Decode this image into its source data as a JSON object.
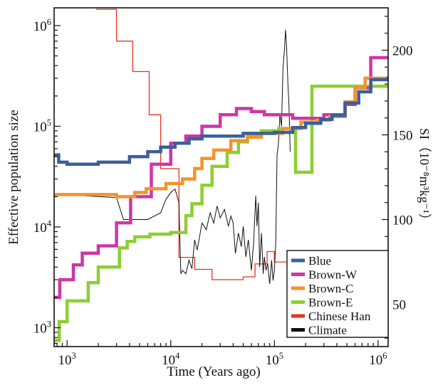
{
  "chart_data": {
    "type": "line",
    "x_scale": "log",
    "y_scale": "log",
    "xlabel": "Time (Years ago)",
    "ylabel": "Effective population size",
    "y2label": "SI（10⁻⁸m³kg⁻¹）",
    "xlim": [
      750,
      1250000
    ],
    "ylim": [
      650,
      1500000
    ],
    "y2lim": [
      25,
      225
    ],
    "x_ticks": [
      {
        "v": 1000,
        "b": "10",
        "e": "3"
      },
      {
        "v": 10000,
        "b": "10",
        "e": "4"
      },
      {
        "v": 100000,
        "b": "10",
        "e": "5"
      },
      {
        "v": 1000000,
        "b": "10",
        "e": "6"
      }
    ],
    "y_ticks": [
      {
        "v": 1000,
        "b": "10",
        "e": "3"
      },
      {
        "v": 10000,
        "b": "10",
        "e": "4"
      },
      {
        "v": 100000,
        "b": "10",
        "e": "5"
      },
      {
        "v": 1000000,
        "b": "10",
        "e": "6"
      }
    ],
    "y2_ticks": [
      {
        "v": 50,
        "label": "50"
      },
      {
        "v": 100,
        "label": "100"
      },
      {
        "v": 150,
        "label": "150"
      },
      {
        "v": 200,
        "label": "200"
      }
    ],
    "legend_position": "bottom-right",
    "series": [
      {
        "name": "Chinese Han",
        "color": "#e8321e",
        "width": 1.3,
        "axis": "left",
        "step": true,
        "points": [
          [
            1900,
            1450000
          ],
          [
            3000,
            700000
          ],
          [
            4300,
            350000
          ],
          [
            6200,
            130000
          ],
          [
            8000,
            38000
          ],
          [
            12000,
            5000
          ],
          [
            17000,
            3800
          ],
          [
            25000,
            3000
          ],
          [
            50000,
            3200
          ],
          [
            65000,
            4300
          ],
          [
            85000,
            5700
          ],
          [
            100000,
            4500
          ],
          [
            110000,
            4500
          ]
        ]
      },
      {
        "name": "Climate",
        "color": "#111111",
        "width": 1.0,
        "axis": "right",
        "step": false,
        "points": [
          [
            1500,
            114
          ],
          [
            3000,
            113
          ],
          [
            3500,
            100
          ],
          [
            6000,
            100
          ],
          [
            8000,
            104
          ],
          [
            9000,
            112
          ],
          [
            10000,
            116
          ],
          [
            11000,
            118
          ],
          [
            12000,
            110
          ],
          [
            12500,
            68
          ],
          [
            13000,
            70
          ],
          [
            14000,
            68
          ],
          [
            15000,
            76
          ],
          [
            16000,
            71
          ],
          [
            17000,
            88
          ],
          [
            18000,
            82
          ],
          [
            20000,
            98
          ],
          [
            22000,
            94
          ],
          [
            24000,
            104
          ],
          [
            26000,
            98
          ],
          [
            28000,
            108
          ],
          [
            30000,
            101
          ],
          [
            33000,
            106
          ],
          [
            36000,
            96
          ],
          [
            38000,
            102
          ],
          [
            40000,
            98
          ],
          [
            42000,
            80
          ],
          [
            45000,
            92
          ],
          [
            48000,
            84
          ],
          [
            50000,
            96
          ],
          [
            53000,
            78
          ],
          [
            56000,
            88
          ],
          [
            60000,
            70
          ],
          [
            63000,
            86
          ],
          [
            66000,
            114
          ],
          [
            68000,
            96
          ],
          [
            70000,
            110
          ],
          [
            72000,
            72
          ],
          [
            75000,
            92
          ],
          [
            78000,
            68
          ],
          [
            80000,
            78
          ],
          [
            83000,
            70
          ],
          [
            86000,
            74
          ],
          [
            90000,
            62
          ],
          [
            94000,
            76
          ],
          [
            97000,
            64
          ],
          [
            100000,
            70
          ],
          [
            103000,
            86
          ],
          [
            106000,
            138
          ],
          [
            109000,
            144
          ],
          [
            113000,
            162
          ],
          [
            117000,
            155
          ],
          [
            121000,
            190
          ],
          [
            125000,
            200
          ],
          [
            128000,
            212
          ],
          [
            131000,
            202
          ],
          [
            135000,
            180
          ],
          [
            138000,
            168
          ],
          [
            142000,
            140
          ]
        ]
      },
      {
        "name": "Brown-E",
        "color": "#8ccf30",
        "width": 4.5,
        "axis": "left",
        "step": true,
        "points": [
          [
            750,
            750
          ],
          [
            840,
            1150
          ],
          [
            1000,
            1850
          ],
          [
            1600,
            2800
          ],
          [
            2000,
            4000
          ],
          [
            3200,
            6200
          ],
          [
            3800,
            7200
          ],
          [
            4500,
            8000
          ],
          [
            6300,
            8500
          ],
          [
            10000,
            8800
          ],
          [
            14000,
            13000
          ],
          [
            16000,
            17000
          ],
          [
            20000,
            26000
          ],
          [
            25000,
            40000
          ],
          [
            35000,
            55000
          ],
          [
            45000,
            70000
          ],
          [
            55000,
            80000
          ],
          [
            75000,
            90000
          ],
          [
            110000,
            95000
          ],
          [
            160000,
            35000
          ],
          [
            230000,
            250000
          ],
          [
            400000,
            250000
          ]
        ]
      },
      {
        "name": "Brown-W",
        "color": "#cf36a4",
        "width": 4.5,
        "axis": "left",
        "step": true,
        "points": [
          [
            750,
            2000
          ],
          [
            850,
            3000
          ],
          [
            1150,
            4200
          ],
          [
            1400,
            5500
          ],
          [
            2000,
            6500
          ],
          [
            3000,
            11000
          ],
          [
            4100,
            20000
          ],
          [
            6500,
            42000
          ],
          [
            10000,
            68000
          ],
          [
            14000,
            80000
          ],
          [
            20000,
            100000
          ],
          [
            30000,
            130000
          ],
          [
            43000,
            150000
          ],
          [
            60000,
            140000
          ],
          [
            80000,
            130000
          ],
          [
            150000,
            120000
          ],
          [
            300000,
            130000
          ],
          [
            480000,
            165000
          ],
          [
            600000,
            240000
          ],
          [
            850000,
            480000
          ],
          [
            1250000,
            480000
          ]
        ]
      },
      {
        "name": "Brown-C",
        "color": "#f4932a",
        "width": 4.5,
        "axis": "left",
        "step": true,
        "points": [
          [
            750,
            21000
          ],
          [
            3000,
            20000
          ],
          [
            4500,
            22000
          ],
          [
            5800,
            24000
          ],
          [
            9000,
            27000
          ],
          [
            13000,
            30000
          ],
          [
            17000,
            38000
          ],
          [
            20000,
            48000
          ],
          [
            26000,
            58000
          ],
          [
            38000,
            72000
          ],
          [
            55000,
            78000
          ],
          [
            75000,
            85000
          ],
          [
            120000,
            95000
          ],
          [
            180000,
            110000
          ],
          [
            260000,
            115000
          ],
          [
            340000,
            125000
          ],
          [
            480000,
            175000
          ],
          [
            600000,
            240000
          ],
          [
            750000,
            300000
          ],
          [
            1250000,
            300000
          ]
        ]
      },
      {
        "name": "Blue",
        "color": "#3a5f9c",
        "width": 4.5,
        "axis": "left",
        "step": true,
        "points": [
          [
            750,
            52000
          ],
          [
            830,
            44000
          ],
          [
            1000,
            42000
          ],
          [
            2000,
            44000
          ],
          [
            4000,
            50000
          ],
          [
            6000,
            56000
          ],
          [
            8000,
            62000
          ],
          [
            11000,
            68000
          ],
          [
            15000,
            75000
          ],
          [
            20000,
            80000
          ],
          [
            50000,
            85000
          ],
          [
            100000,
            87000
          ],
          [
            150000,
            97000
          ],
          [
            200000,
            107000
          ],
          [
            280000,
            117000
          ],
          [
            360000,
            128000
          ],
          [
            480000,
            170000
          ],
          [
            650000,
            220000
          ],
          [
            850000,
            290000
          ],
          [
            1250000,
            300000
          ]
        ]
      }
    ],
    "legend_order": [
      "Blue",
      "Brown-W",
      "Brown-C",
      "Brown-E",
      "Chinese Han",
      "Climate"
    ]
  }
}
